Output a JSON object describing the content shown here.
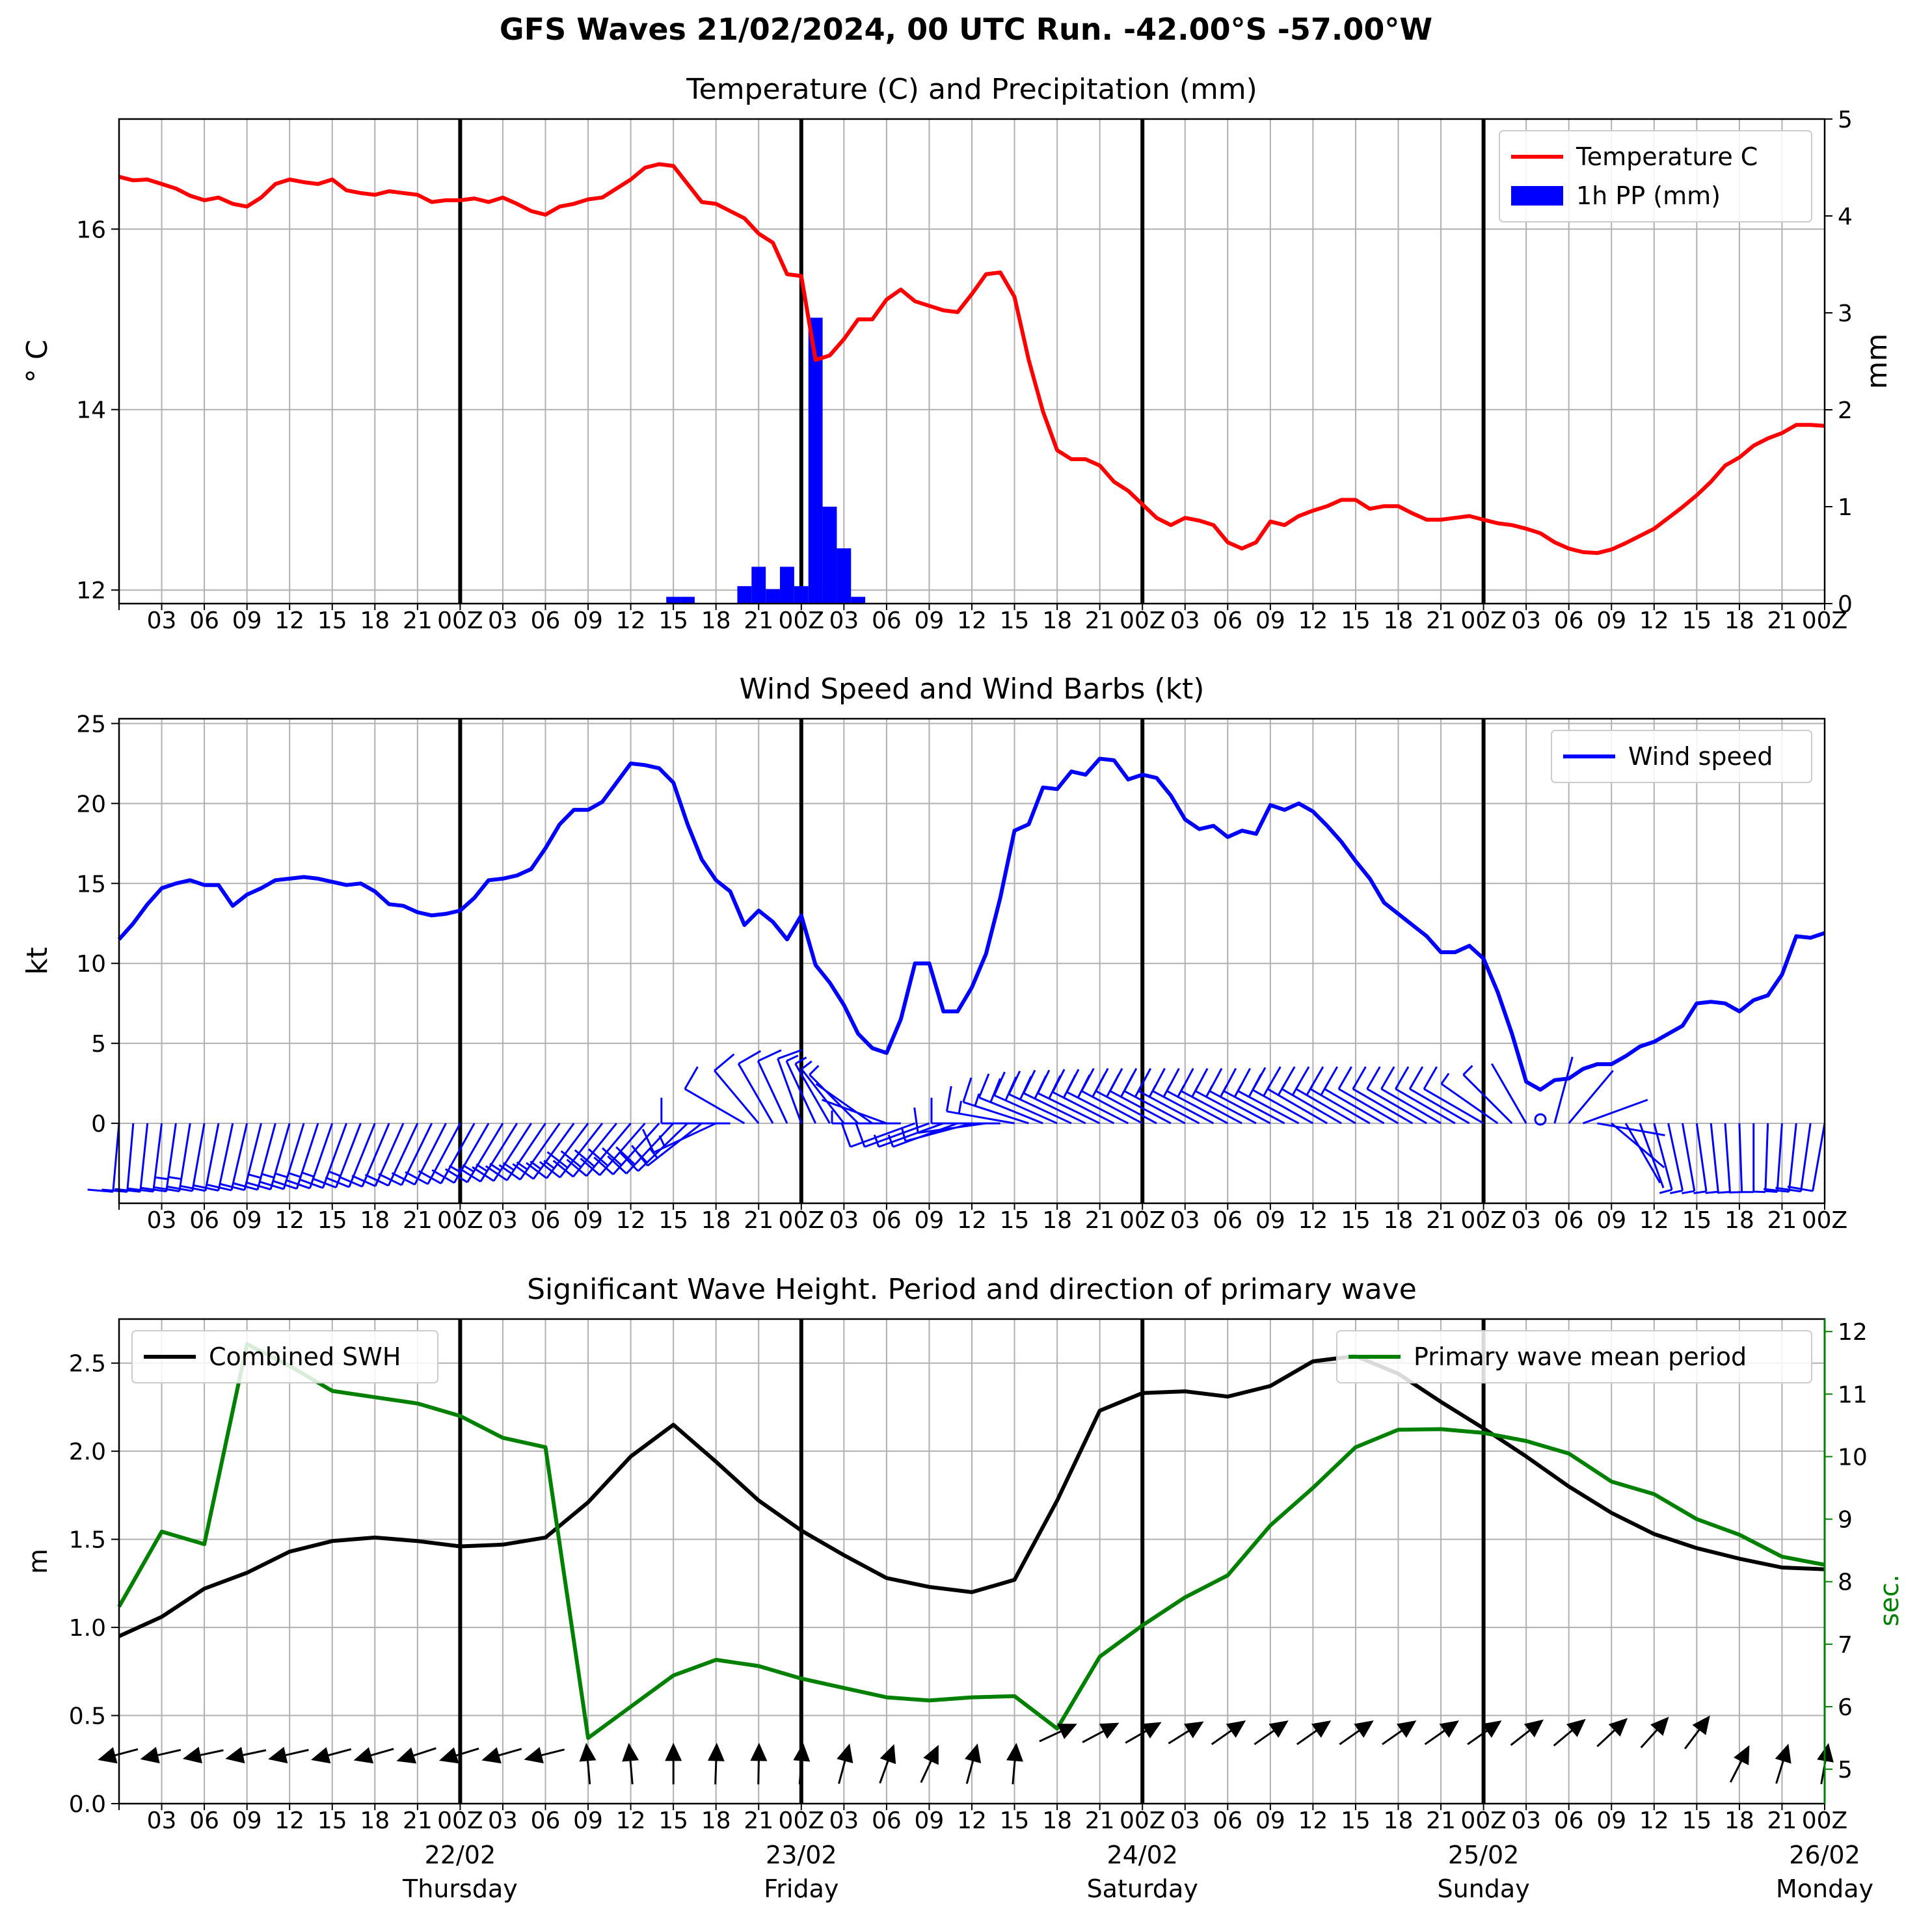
{
  "title": "GFS Waves 21/02/2024, 00 UTC Run. -42.00°S -57.00°W",
  "time_axis": {
    "start_hour": 0,
    "end_hour": 120,
    "hour_ticks": [
      "",
      "03",
      "06",
      "09",
      "12",
      "15",
      "18",
      "21",
      "00Z",
      "03",
      "06",
      "09",
      "12",
      "15",
      "18",
      "21",
      "00Z",
      "03",
      "06",
      "09",
      "12",
      "15",
      "18",
      "21",
      "00Z",
      "03",
      "06",
      "09",
      "12",
      "15",
      "18",
      "21",
      "00Z",
      "03",
      "06",
      "09",
      "12",
      "15",
      "18",
      "21",
      "00Z"
    ],
    "day_labels": [
      {
        "hour": 24,
        "date": "22/02",
        "day": "Thursday"
      },
      {
        "hour": 48,
        "date": "23/02",
        "day": "Friday"
      },
      {
        "hour": 72,
        "date": "24/02",
        "day": "Saturday"
      },
      {
        "hour": 96,
        "date": "25/02",
        "day": "Sunday"
      },
      {
        "hour": 120,
        "date": "26/02",
        "day": "Monday"
      }
    ],
    "day_boundaries": [
      24,
      48,
      72,
      96
    ]
  },
  "chart_data": [
    {
      "type": "line",
      "title": "Temperature (C) and Precipitation (mm)",
      "ylabel": "$^\\circ$C",
      "ylabel_display": "° C",
      "y2label": "mm",
      "ylim": [
        11.85,
        17.22
      ],
      "y2lim": [
        0,
        5
      ],
      "yticks": [
        12,
        14,
        16
      ],
      "y2ticks": [
        0,
        1,
        2,
        3,
        4,
        5
      ],
      "legend_position": "top-right",
      "colors": {
        "temperature": "#ff0000",
        "precip": "#0000ff"
      },
      "series": [
        {
          "name": "Temperature C",
          "x": [
            0,
            1,
            2,
            3,
            4,
            5,
            6,
            7,
            8,
            9,
            10,
            11,
            12,
            13,
            14,
            15,
            16,
            17,
            18,
            19,
            20,
            21,
            22,
            23,
            24,
            25,
            26,
            27,
            28,
            29,
            30,
            31,
            32,
            33,
            34,
            35,
            36,
            37,
            38,
            39,
            40,
            41,
            42,
            43,
            44,
            45,
            46,
            47,
            48,
            49,
            50,
            51,
            52,
            53,
            54,
            55,
            56,
            57,
            58,
            59,
            60,
            61,
            62,
            63,
            64,
            65,
            66,
            67,
            68,
            69,
            70,
            71,
            72,
            73,
            74,
            75,
            76,
            77,
            78,
            79,
            80,
            81,
            82,
            83,
            84,
            85,
            86,
            87,
            88,
            89,
            90,
            91,
            92,
            93,
            94,
            95,
            96,
            97,
            98,
            99,
            100,
            101,
            102,
            103,
            104,
            105,
            106,
            107,
            108,
            109,
            110,
            111,
            112,
            113,
            114,
            115,
            116,
            117,
            118,
            119,
            120
          ],
          "values": [
            16.58,
            16.54,
            16.55,
            16.5,
            16.45,
            16.37,
            16.32,
            16.35,
            16.28,
            16.25,
            16.35,
            16.5,
            16.55,
            16.52,
            16.5,
            16.55,
            16.43,
            16.4,
            16.38,
            16.42,
            16.4,
            16.38,
            16.3,
            16.32,
            16.32,
            16.34,
            16.3,
            16.35,
            16.28,
            16.2,
            16.16,
            16.25,
            16.28,
            16.33,
            16.35,
            16.45,
            16.55,
            16.68,
            16.72,
            16.7,
            16.5,
            16.3,
            16.28,
            16.2,
            16.12,
            15.95,
            15.85,
            15.5,
            15.48,
            14.55,
            14.6,
            14.78,
            15.0,
            15.0,
            15.22,
            15.33,
            15.2,
            15.15,
            15.1,
            15.08,
            15.28,
            15.5,
            15.52,
            15.25,
            14.55,
            13.98,
            13.55,
            13.45,
            13.45,
            13.38,
            13.2,
            13.1,
            12.95,
            12.8,
            12.72,
            12.8,
            12.77,
            12.72,
            12.53,
            12.46,
            12.53,
            12.76,
            12.72,
            12.82,
            12.88,
            12.93,
            13.0,
            13.0,
            12.9,
            12.93,
            12.93,
            12.85,
            12.78,
            12.78,
            12.8,
            12.82,
            12.78,
            12.74,
            12.72,
            12.68,
            12.63,
            12.53,
            12.46,
            12.42,
            12.41,
            12.45,
            12.52,
            12.6,
            12.68,
            12.8,
            12.92,
            13.05,
            13.2,
            13.38,
            13.47,
            13.6,
            13.68,
            13.74,
            13.83,
            13.83,
            13.82
          ]
        },
        {
          "name": "1h PP (mm)",
          "type": "bar",
          "x": [
            39,
            40,
            44,
            45,
            46,
            47,
            48,
            49,
            50,
            51,
            52
          ],
          "values": [
            0.07,
            0.07,
            0.18,
            0.38,
            0.15,
            0.38,
            0.18,
            2.95,
            1.0,
            0.57,
            0.07
          ]
        }
      ]
    },
    {
      "type": "line",
      "title": "Wind Speed and Wind Barbs (kt)",
      "ylabel": "kt",
      "ylim": [
        -5,
        25.3
      ],
      "yticks": [
        0,
        5,
        10,
        15,
        20,
        25
      ],
      "legend_position": "top-right",
      "colors": {
        "wind": "#0000ff"
      },
      "series": [
        {
          "name": "Wind speed",
          "x": [
            0,
            1,
            2,
            3,
            4,
            5,
            6,
            7,
            8,
            9,
            10,
            11,
            12,
            13,
            14,
            15,
            16,
            17,
            18,
            19,
            20,
            21,
            22,
            23,
            24,
            25,
            26,
            27,
            28,
            29,
            30,
            31,
            32,
            33,
            34,
            35,
            36,
            37,
            38,
            39,
            40,
            41,
            42,
            43,
            44,
            45,
            46,
            47,
            48,
            49,
            50,
            51,
            52,
            53,
            54,
            55,
            56,
            57,
            58,
            59,
            60,
            61,
            62,
            63,
            64,
            65,
            66,
            67,
            68,
            69,
            70,
            71,
            72,
            73,
            74,
            75,
            76,
            77,
            78,
            79,
            80,
            81,
            82,
            83,
            84,
            85,
            86,
            87,
            88,
            89,
            90,
            91,
            92,
            93,
            94,
            95,
            96,
            97,
            98,
            99,
            100,
            101,
            102,
            103,
            104,
            105,
            106,
            107,
            108,
            109,
            110,
            111,
            112,
            113,
            114,
            115,
            116,
            117,
            118,
            119,
            120
          ],
          "values": [
            11.5,
            12.5,
            13.7,
            14.7,
            15.0,
            15.2,
            14.9,
            14.9,
            13.6,
            14.3,
            14.7,
            15.2,
            15.3,
            15.4,
            15.3,
            15.1,
            14.9,
            15.0,
            14.5,
            13.7,
            13.6,
            13.2,
            13.0,
            13.1,
            13.3,
            14.1,
            15.2,
            15.3,
            15.5,
            15.9,
            17.2,
            18.7,
            19.6,
            19.6,
            20.1,
            21.3,
            22.5,
            22.4,
            22.2,
            21.3,
            18.7,
            16.5,
            15.2,
            14.5,
            12.4,
            13.3,
            12.6,
            11.5,
            13.0,
            9.9,
            8.8,
            7.4,
            5.6,
            4.7,
            4.4,
            6.5,
            10.0,
            10.0,
            7.0,
            7.0,
            8.5,
            10.6,
            14.1,
            18.3,
            18.7,
            21.0,
            20.9,
            22.0,
            21.8,
            22.8,
            22.7,
            21.5,
            21.8,
            21.6,
            20.5,
            19.0,
            18.4,
            18.6,
            17.9,
            18.3,
            18.1,
            19.9,
            19.6,
            20.0,
            19.5,
            18.6,
            17.6,
            16.4,
            15.3,
            13.8,
            13.1,
            12.4,
            11.7,
            10.7,
            10.7,
            11.1,
            10.3,
            8.2,
            5.6,
            2.6,
            2.1,
            2.7,
            2.8,
            3.4,
            3.7,
            3.7,
            4.2,
            4.8,
            5.1,
            5.6,
            6.1,
            7.5,
            7.6,
            7.5,
            7.0,
            7.7,
            8.0,
            9.3,
            11.7,
            11.6,
            11.9
          ]
        }
      ],
      "barbs": {
        "step_hours": 1,
        "color": "#0000ff",
        "directions_deg": [
          185,
          185,
          186,
          187,
          188,
          189,
          190,
          191,
          192,
          193,
          194,
          195,
          196,
          197,
          198,
          199,
          200,
          201,
          202,
          203,
          204,
          205,
          206,
          207,
          208,
          209,
          210,
          211,
          212,
          213,
          214,
          215,
          216,
          217,
          218,
          219,
          220,
          221,
          222,
          223,
          226,
          232,
          245,
          270,
          300,
          320,
          330,
          335,
          340,
          335,
          330,
          322,
          315,
          305,
          290,
          270,
          250,
          250,
          250,
          250,
          255,
          262,
          270,
          280,
          288,
          292,
          294,
          295,
          296,
          296,
          297,
          297,
          298,
          298,
          298,
          298,
          298,
          298,
          298,
          298,
          298,
          298,
          298,
          298,
          299,
          300,
          300,
          300,
          300,
          300,
          300,
          300,
          300,
          300,
          300,
          300,
          300,
          305,
          315,
          330,
          350,
          15,
          40,
          70,
          100,
          130,
          150,
          160,
          165,
          168,
          170,
          172,
          174,
          176,
          178,
          180,
          182,
          184,
          186,
          188,
          190
        ]
      }
    },
    {
      "type": "line",
      "title": "Significant Wave Height. Period and direction of primary wave",
      "ylabel": "m",
      "y2label": "sec.",
      "ylim": [
        0,
        2.75
      ],
      "y2lim": [
        4.45,
        12.2
      ],
      "yticks": [
        0.0,
        0.5,
        1.0,
        1.5,
        2.0,
        2.5
      ],
      "y2ticks": [
        5,
        6,
        7,
        8,
        9,
        10,
        11,
        12
      ],
      "colors": {
        "swh": "#000000",
        "period": "#008000",
        "arrows": "#000000"
      },
      "series": [
        {
          "name": "Combined SWH",
          "legend_position": "top-left",
          "x": [
            0,
            3,
            6,
            9,
            12,
            15,
            18,
            21,
            24,
            27,
            30,
            33,
            36,
            39,
            42,
            45,
            48,
            51,
            54,
            57,
            60,
            63,
            66,
            69,
            72,
            75,
            78,
            81,
            84,
            87,
            90,
            93,
            96,
            99,
            102,
            105,
            108,
            111,
            114,
            117,
            120
          ],
          "values": [
            0.95,
            1.06,
            1.22,
            1.31,
            1.43,
            1.49,
            1.51,
            1.49,
            1.46,
            1.47,
            1.51,
            1.71,
            1.97,
            2.15,
            1.94,
            1.72,
            1.55,
            1.41,
            1.28,
            1.23,
            1.2,
            1.27,
            1.72,
            2.23,
            2.33,
            2.34,
            2.31,
            2.37,
            2.51,
            2.54,
            2.44,
            2.28,
            2.13,
            1.97,
            1.8,
            1.65,
            1.53,
            1.45,
            1.39,
            1.34,
            1.33
          ]
        },
        {
          "name": "Primary wave mean period",
          "legend_position": "top-right",
          "axis": "right",
          "x": [
            0,
            3,
            6,
            9,
            12,
            15,
            18,
            21,
            24,
            27,
            30,
            33,
            36,
            39,
            42,
            45,
            48,
            51,
            54,
            57,
            60,
            63,
            66,
            69,
            72,
            75,
            78,
            81,
            84,
            87,
            90,
            93,
            96,
            99,
            102,
            105,
            108,
            111,
            114,
            117,
            120
          ],
          "values": [
            7.6,
            8.8,
            8.6,
            11.8,
            11.45,
            11.05,
            10.95,
            10.85,
            10.65,
            10.3,
            10.15,
            5.5,
            6.0,
            6.5,
            6.75,
            6.65,
            6.45,
            6.3,
            6.15,
            6.1,
            6.15,
            6.17,
            5.65,
            6.8,
            7.3,
            7.75,
            8.1,
            8.9,
            9.5,
            10.15,
            10.43,
            10.44,
            10.38,
            10.25,
            10.05,
            9.6,
            9.4,
            9.0,
            8.75,
            8.4,
            8.27
          ]
        }
      ],
      "wave_direction_arrows": {
        "x": [
          0,
          3,
          6,
          9,
          12,
          15,
          18,
          21,
          24,
          27,
          30,
          33,
          36,
          39,
          42,
          45,
          48,
          51,
          54,
          57,
          60,
          63,
          66,
          69,
          72,
          75,
          78,
          81,
          84,
          87,
          90,
          93,
          96,
          99,
          102,
          105,
          108,
          111,
          114,
          117,
          120
        ],
        "directions_deg": [
          255,
          257,
          258,
          258,
          257,
          255,
          254,
          252,
          253,
          254,
          256,
          355,
          355,
          0,
          2,
          1,
          5,
          15,
          20,
          25,
          15,
          5,
          65,
          62,
          60,
          58,
          55,
          55,
          55,
          55,
          55,
          55,
          55,
          52,
          50,
          47,
          42,
          37,
          27,
          17,
          10
        ]
      }
    }
  ]
}
